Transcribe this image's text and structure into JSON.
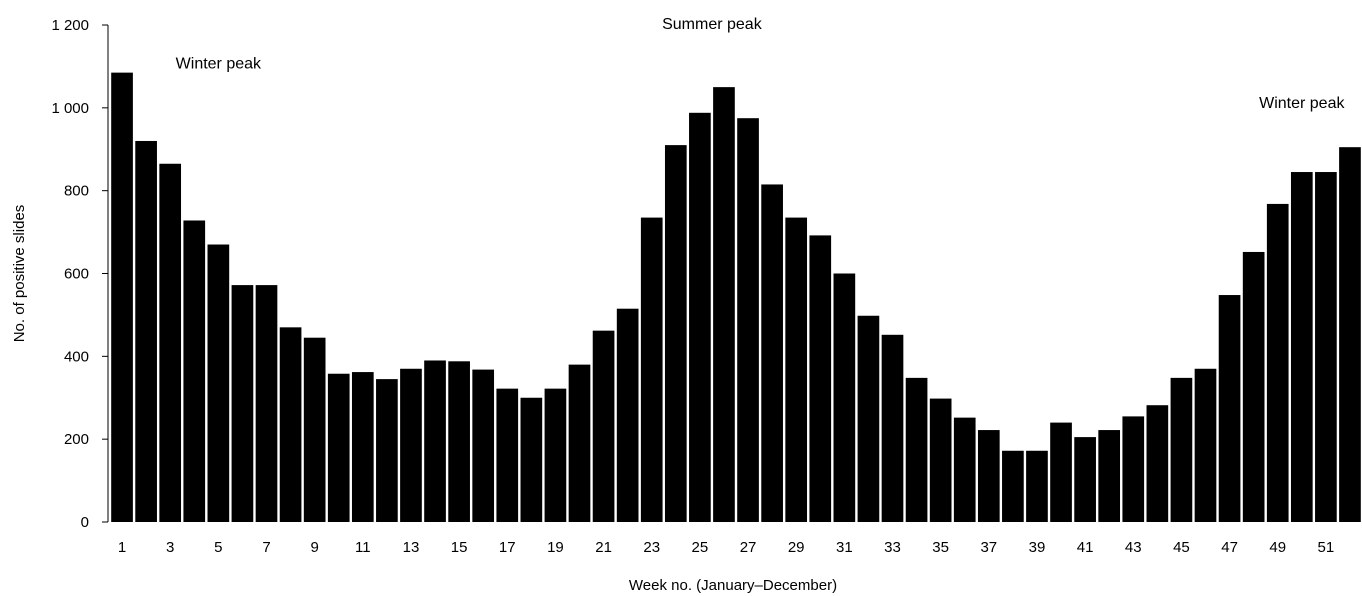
{
  "chart_data": {
    "type": "bar",
    "title": "",
    "xlabel": "Week no. (January–December)",
    "ylabel": "No. of positive slides",
    "ylim": [
      0,
      1200
    ],
    "yticks": [
      0,
      200,
      400,
      600,
      800,
      1000,
      1200
    ],
    "ytick_labels": [
      "0",
      "200",
      "400",
      "600",
      "800",
      "1 000",
      "1 200"
    ],
    "xtick_labels": [
      "1",
      "3",
      "5",
      "7",
      "9",
      "11",
      "13",
      "15",
      "17",
      "19",
      "21",
      "23",
      "25",
      "27",
      "29",
      "31",
      "33",
      "35",
      "37",
      "39",
      "41",
      "43",
      "45",
      "47",
      "49",
      "51"
    ],
    "categories": [
      1,
      2,
      3,
      4,
      5,
      6,
      7,
      8,
      9,
      10,
      11,
      12,
      13,
      14,
      15,
      16,
      17,
      18,
      19,
      20,
      21,
      22,
      23,
      24,
      25,
      26,
      27,
      28,
      29,
      30,
      31,
      32,
      33,
      34,
      35,
      36,
      37,
      38,
      39,
      40,
      41,
      42,
      43,
      44,
      45,
      46,
      47,
      48,
      49,
      50,
      51,
      52
    ],
    "values": [
      1085,
      920,
      865,
      728,
      670,
      572,
      572,
      470,
      445,
      358,
      362,
      345,
      370,
      390,
      388,
      368,
      322,
      300,
      322,
      380,
      462,
      515,
      735,
      910,
      988,
      1050,
      975,
      815,
      735,
      692,
      600,
      498,
      452,
      348,
      298,
      252,
      222,
      172,
      172,
      240,
      205,
      222,
      255,
      282,
      348,
      370,
      548,
      652,
      768,
      845,
      845,
      905
    ],
    "bar_color": "#000000",
    "grid": false,
    "legend": "none",
    "annotations": [
      {
        "text": "Winter peak",
        "week": 5,
        "value": 1095
      },
      {
        "text": "Summer peak",
        "week": 25.5,
        "value": 1190
      },
      {
        "text": "Winter peak",
        "week": 50,
        "value": 1000
      }
    ]
  }
}
